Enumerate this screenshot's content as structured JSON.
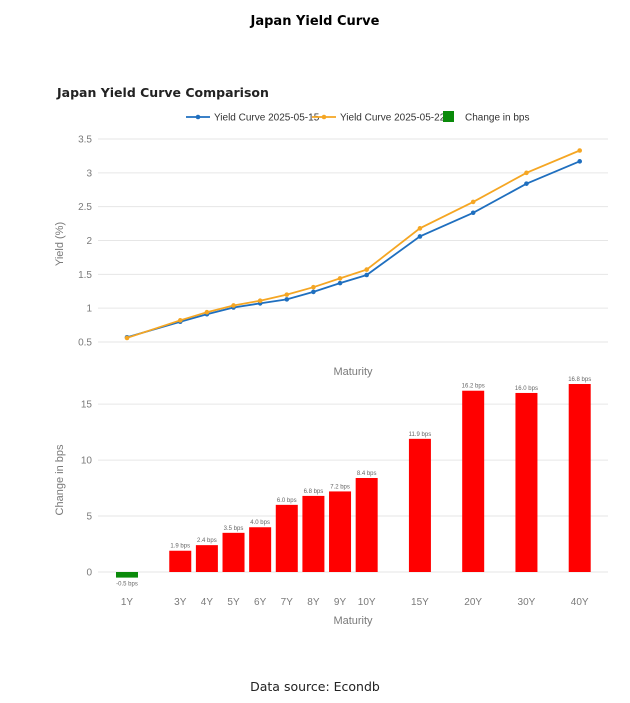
{
  "page": {
    "title": "Japan Yield Curve",
    "source": "Data source: Econdb"
  },
  "chart_data": [
    {
      "type": "line",
      "title": "Japan Yield Curve Comparison",
      "xlabel": "Maturity",
      "ylabel": "Yield (%)",
      "ylim": [
        0.5,
        3.5
      ],
      "yticks": [
        "0.5",
        "1",
        "1.5",
        "2",
        "2.5",
        "3",
        "3.5"
      ],
      "grid": true,
      "legend_position": "top-center",
      "categories": [
        "1Y",
        "3Y",
        "4Y",
        "5Y",
        "6Y",
        "7Y",
        "8Y",
        "9Y",
        "10Y",
        "15Y",
        "20Y",
        "30Y",
        "40Y"
      ],
      "x": [
        1,
        3,
        4,
        5,
        6,
        7,
        8,
        9,
        10,
        12,
        14,
        16,
        18
      ],
      "series": [
        {
          "name": "Yield Curve 2025-05-15",
          "color": "#1f6fbf",
          "values": [
            0.57,
            0.8,
            0.91,
            1.01,
            1.07,
            1.13,
            1.24,
            1.37,
            1.49,
            2.06,
            2.41,
            2.84,
            3.17
          ]
        },
        {
          "name": "Yield Curve 2025-05-22",
          "color": "#f5a623",
          "values": [
            0.56,
            0.82,
            0.94,
            1.04,
            1.11,
            1.2,
            1.31,
            1.44,
            1.57,
            2.18,
            2.57,
            3.0,
            3.33
          ]
        }
      ],
      "legend_extra": {
        "name": "Change in bps",
        "color": "#0a8a0a"
      }
    },
    {
      "type": "bar",
      "xlabel": "Maturity",
      "ylabel": "Change in bps",
      "ylim": [
        -1,
        17.5
      ],
      "yticks": [
        "0",
        "5",
        "10",
        "15"
      ],
      "grid": true,
      "categories": [
        "1Y",
        "3Y",
        "4Y",
        "5Y",
        "6Y",
        "7Y",
        "8Y",
        "9Y",
        "10Y",
        "15Y",
        "20Y",
        "30Y",
        "40Y"
      ],
      "x": [
        1,
        3,
        4,
        5,
        6,
        7,
        8,
        9,
        10,
        12,
        14,
        16,
        18
      ],
      "values": [
        -0.5,
        1.9,
        2.4,
        3.5,
        4.0,
        6.0,
        6.8,
        7.2,
        8.4,
        11.9,
        16.2,
        16.0,
        16.8
      ],
      "labels": [
        "-0.5 bps",
        "1.9 bps",
        "2.4 bps",
        "3.5 bps",
        "4.0 bps",
        "6.0 bps",
        "6.8 bps",
        "7.2 bps",
        "8.4 bps",
        "11.9 bps",
        "16.2 bps",
        "16.0 bps",
        "16.8 bps"
      ],
      "positive_color": "#ff0000",
      "negative_color": "#0a8a0a"
    }
  ]
}
